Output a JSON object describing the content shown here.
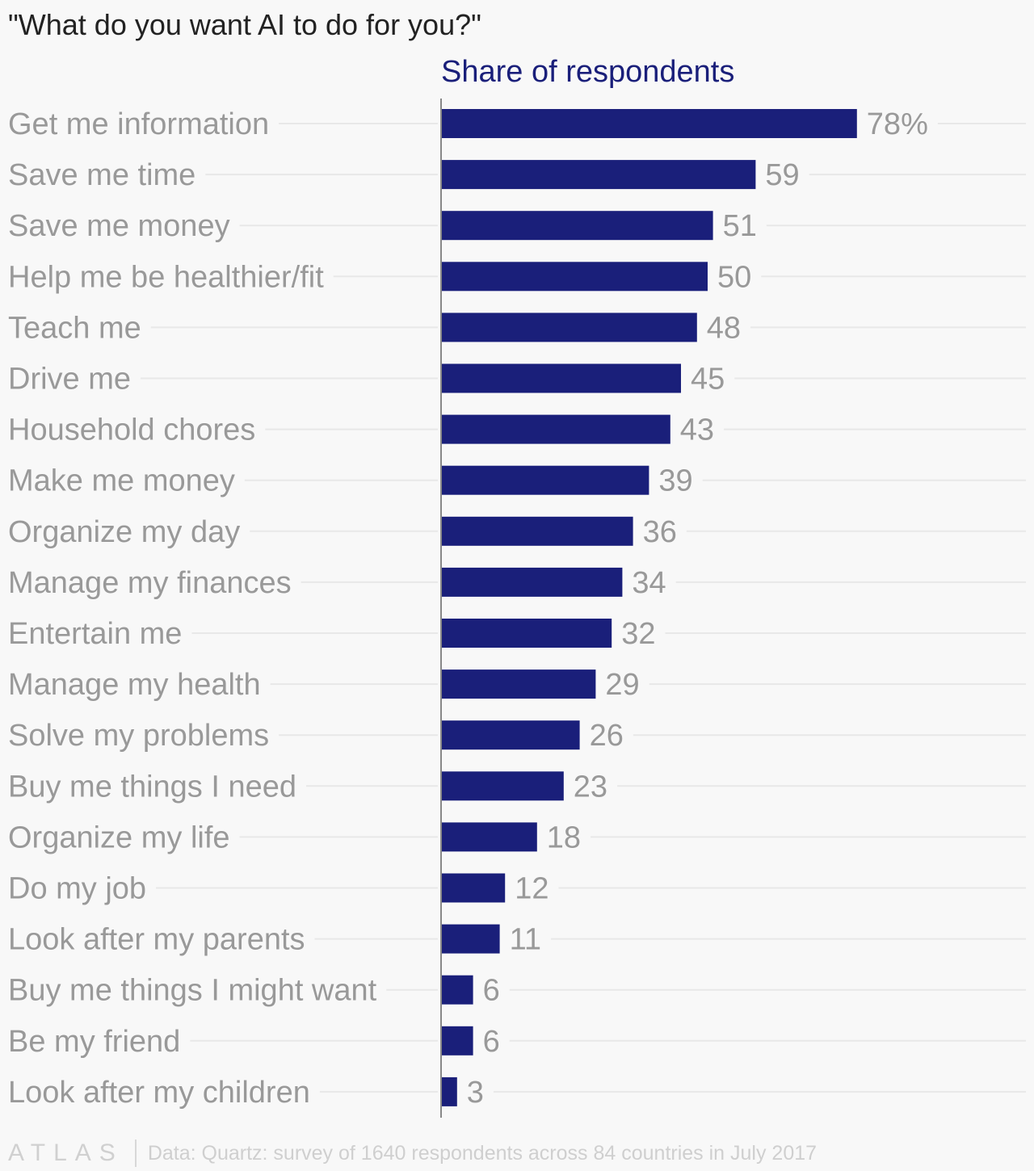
{
  "chart_data": {
    "type": "bar",
    "orientation": "horizontal",
    "title": "\"What do you want AI to do for you?\"",
    "series_title": "Share of respondents",
    "categories": [
      "Get me information",
      "Save me time",
      "Save me money",
      "Help me be healthier/fit",
      "Teach me",
      "Drive me",
      "Household chores",
      "Make me money",
      "Organize my day",
      "Manage my finances",
      "Entertain me",
      "Manage my health",
      "Solve my problems",
      "Buy me things I need",
      "Organize my life",
      "Do my job",
      "Look after my parents",
      "Buy me things I might want",
      "Be my friend",
      "Look after my children"
    ],
    "values": [
      78,
      59,
      51,
      50,
      48,
      45,
      43,
      39,
      36,
      34,
      32,
      29,
      26,
      23,
      18,
      12,
      11,
      6,
      6,
      3
    ],
    "value_labels": [
      "78%",
      "59",
      "51",
      "50",
      "48",
      "45",
      "43",
      "39",
      "36",
      "34",
      "32",
      "29",
      "26",
      "23",
      "18",
      "12",
      "11",
      "6",
      "6",
      "3"
    ],
    "xlim": [
      0,
      100
    ],
    "grid": false,
    "bar_color": "#1a1f7a"
  },
  "footer": {
    "logo": "ATLAS",
    "source": "Data: Quartz: survey of 1640 respondents across 84 countries in July 2017"
  }
}
